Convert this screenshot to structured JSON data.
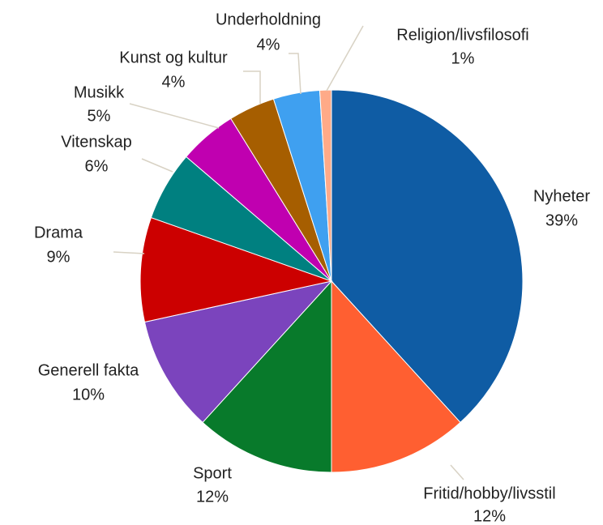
{
  "chart_data": {
    "type": "pie",
    "categories": [
      "Nyheter",
      "Fritid/hobby/livsstil",
      "Sport",
      "Generell fakta",
      "Drama",
      "Vitenskap",
      "Musikk",
      "Kunst og kultur",
      "Underholdning",
      "Religion/livsfilosofi"
    ],
    "values": [
      39,
      12,
      12,
      10,
      9,
      6,
      5,
      4,
      4,
      1
    ],
    "value_labels": [
      "39%",
      "12%",
      "12%",
      "10%",
      "9%",
      "6%",
      "5%",
      "4%",
      "4%",
      "1%"
    ],
    "colors": [
      "#0f5ca4",
      "#ff5f31",
      "#087a2b",
      "#7b44bd",
      "#cc0000",
      "#008080",
      "#c000b0",
      "#a65e00",
      "#3fa0f0",
      "#ffaa88"
    ]
  }
}
